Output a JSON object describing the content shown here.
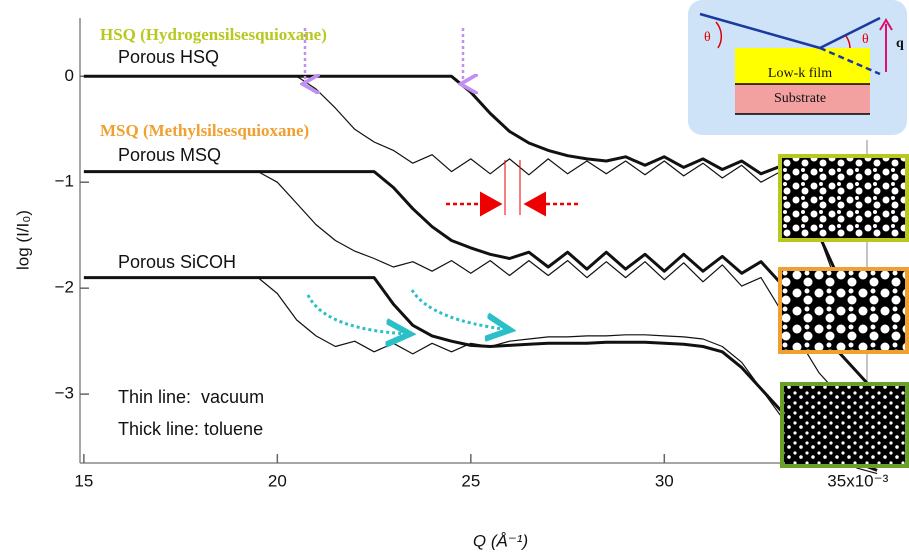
{
  "chart_data": {
    "type": "line",
    "x_label": "Q (Å⁻¹)",
    "y_label": "log (I/I₀)",
    "xlim": [
      14.9,
      35.6
    ],
    "ylim": [
      -3.65,
      0.55
    ],
    "xticks": [
      15,
      20,
      25,
      30,
      {
        "value": 35,
        "label": "35x10⁻³"
      }
    ],
    "yticks": [
      0,
      {
        "value": -1,
        "label": "−1"
      },
      {
        "value": -2,
        "label": "−2"
      },
      {
        "value": -3,
        "label": "−3"
      }
    ],
    "x": [
      15,
      15.5,
      16,
      16.5,
      17,
      17.5,
      18,
      18.5,
      19,
      19.5,
      20,
      20.5,
      21,
      21.5,
      22,
      22.5,
      23,
      23.5,
      24,
      24.5,
      25,
      25.5,
      26,
      26.5,
      27,
      27.5,
      28,
      28.5,
      29,
      29.5,
      30,
      30.5,
      31,
      31.5,
      32,
      32.5,
      33,
      33.5,
      34,
      34.5,
      35,
      35.5
    ],
    "series": [
      {
        "color": "#111",
        "line_width": 1.2,
        "values": [
          0,
          0,
          0,
          0,
          0,
          0,
          0,
          0,
          0,
          0,
          0,
          0,
          -0.12,
          -0.3,
          -0.5,
          -0.62,
          -0.7,
          -0.82,
          -0.74,
          -0.9,
          -0.78,
          -0.92,
          -0.78,
          -0.93,
          -0.78,
          -0.92,
          -0.8,
          -0.92,
          -0.8,
          -0.93,
          -0.8,
          -0.94,
          -0.82,
          -0.96,
          -0.84,
          -1.0,
          -0.9,
          -1.2,
          -1.5,
          -2.0,
          -2.3,
          -2.6
        ]
      },
      {
        "color": "#111",
        "line_width": 3,
        "values": [
          0,
          0,
          0,
          0,
          0,
          0,
          0,
          0,
          0,
          0,
          0,
          0,
          0,
          0,
          0,
          0,
          0,
          0,
          0,
          0,
          -0.15,
          -0.35,
          -0.52,
          -0.63,
          -0.7,
          -0.75,
          -0.78,
          -0.8,
          -0.76,
          -0.84,
          -0.76,
          -0.86,
          -0.78,
          -0.88,
          -0.8,
          -0.92,
          -0.85,
          -1.1,
          -1.5,
          -1.9,
          -2.2,
          -2.4
        ]
      },
      {
        "color": "#111",
        "line_width": 1.2,
        "values": [
          -0.9,
          -0.9,
          -0.9,
          -0.9,
          -0.9,
          -0.9,
          -0.9,
          -0.9,
          -0.9,
          -0.9,
          -1.0,
          -1.2,
          -1.4,
          -1.55,
          -1.65,
          -1.72,
          -1.8,
          -1.75,
          -1.84,
          -1.74,
          -1.86,
          -1.74,
          -1.88,
          -1.74,
          -1.88,
          -1.74,
          -1.9,
          -1.75,
          -1.9,
          -1.75,
          -1.92,
          -1.76,
          -1.94,
          -1.78,
          -1.98,
          -1.9,
          -2.2,
          -2.5,
          -2.8,
          -3.0,
          -3.2,
          -3.4
        ]
      },
      {
        "color": "#111",
        "line_width": 3,
        "values": [
          -0.9,
          -0.9,
          -0.9,
          -0.9,
          -0.9,
          -0.9,
          -0.9,
          -0.9,
          -0.9,
          -0.9,
          -0.9,
          -0.9,
          -0.9,
          -0.9,
          -0.9,
          -0.9,
          -1.05,
          -1.25,
          -1.42,
          -1.55,
          -1.62,
          -1.68,
          -1.72,
          -1.66,
          -1.8,
          -1.66,
          -1.82,
          -1.66,
          -1.82,
          -1.68,
          -1.84,
          -1.68,
          -1.84,
          -1.7,
          -1.86,
          -1.75,
          -1.95,
          -2.1,
          -2.4,
          -2.6,
          -2.8,
          -3.0
        ]
      },
      {
        "color": "#111",
        "line_width": 1.2,
        "values": [
          -1.9,
          -1.9,
          -1.9,
          -1.9,
          -1.9,
          -1.9,
          -1.9,
          -1.9,
          -1.9,
          -1.9,
          -2.05,
          -2.3,
          -2.45,
          -2.55,
          -2.5,
          -2.6,
          -2.52,
          -2.62,
          -2.52,
          -2.6,
          -2.52,
          -2.55,
          -2.5,
          -2.48,
          -2.46,
          -2.46,
          -2.45,
          -2.45,
          -2.44,
          -2.44,
          -2.45,
          -2.46,
          -2.48,
          -2.55,
          -2.7,
          -2.95,
          -3.2,
          -3.4,
          -3.55,
          -3.62,
          -3.7,
          -3.75
        ]
      },
      {
        "color": "#111",
        "line_width": 3,
        "values": [
          -1.9,
          -1.9,
          -1.9,
          -1.9,
          -1.9,
          -1.9,
          -1.9,
          -1.9,
          -1.9,
          -1.9,
          -1.9,
          -1.9,
          -1.9,
          -1.9,
          -1.9,
          -1.9,
          -2.15,
          -2.35,
          -2.45,
          -2.5,
          -2.54,
          -2.55,
          -2.54,
          -2.53,
          -2.52,
          -2.52,
          -2.52,
          -2.51,
          -2.51,
          -2.51,
          -2.52,
          -2.53,
          -2.55,
          -2.6,
          -2.75,
          -2.95,
          -3.15,
          -3.3,
          -3.45,
          -3.55,
          -3.65,
          -3.72
        ]
      }
    ],
    "annotations": [
      "HSQ (Hydrogensilsesquioxane)",
      "Porous HSQ",
      "MSQ (Methylsilsesquioxane)",
      "Porous MSQ",
      "Porous SiCOH",
      "Thin line:  vacuum",
      "Thick line: toluene"
    ],
    "inset": {
      "angle_labels": [
        "θ",
        "θ"
      ],
      "vector_label": "q",
      "layers": [
        "Low-k film",
        "Substrate"
      ]
    }
  }
}
